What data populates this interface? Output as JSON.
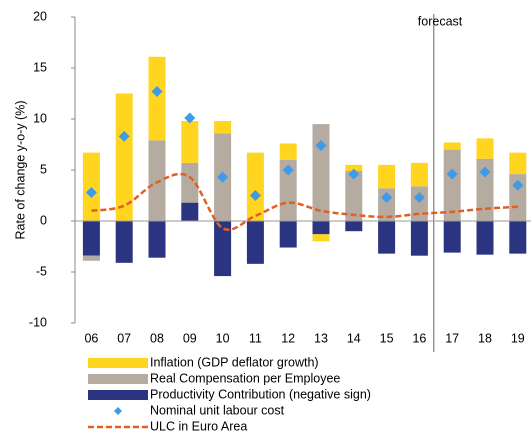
{
  "chart_data": {
    "type": "bar",
    "stacked": true,
    "y_label": "Rate of change y-o-y (%)",
    "annotation": "forecast",
    "categories": [
      "06",
      "07",
      "08",
      "09",
      "10",
      "11",
      "12",
      "13",
      "14",
      "15",
      "16",
      "17",
      "18",
      "19"
    ],
    "ylim": [
      -10,
      20
    ],
    "yticks": [
      -10,
      -5,
      0,
      5,
      10,
      15,
      20
    ],
    "grid": false,
    "series": [
      {
        "name": "Productivity Contribution (negative sign)",
        "type": "bar",
        "color": "#2b3480",
        "values": [
          -3.4,
          -4.1,
          -3.6,
          1.8,
          -5.4,
          -4.2,
          -2.6,
          -1.3,
          -1.0,
          -3.2,
          -3.4,
          -3.1,
          -3.3,
          -3.2
        ]
      },
      {
        "name": "Real Compensation per Employee",
        "type": "bar",
        "color": "#b5aba1",
        "values": [
          -0.5,
          0,
          7.9,
          3.9,
          8.6,
          0,
          6.0,
          9.5,
          4.9,
          3.2,
          3.4,
          7.0,
          6.1,
          4.6
        ]
      },
      {
        "name": "Inflation (GDP deflator growth)",
        "type": "bar",
        "color": "#ffd51f",
        "values": [
          6.7,
          12.5,
          8.2,
          4.1,
          1.2,
          6.7,
          1.6,
          -0.7,
          0.6,
          2.3,
          2.3,
          0.7,
          2.0,
          2.1
        ]
      },
      {
        "name": "Nominal unit labour cost",
        "type": "scatter",
        "color": "#3d9be9",
        "values": [
          2.8,
          8.3,
          12.7,
          10.1,
          4.3,
          2.5,
          5.0,
          7.4,
          4.6,
          2.3,
          2.3,
          4.6,
          4.8,
          3.5
        ]
      },
      {
        "name": "ULC in Euro Area",
        "type": "line",
        "color": "#e2601f",
        "values": [
          1.0,
          1.5,
          3.8,
          4.3,
          -0.7,
          0.5,
          1.8,
          1.0,
          0.6,
          0.4,
          0.7,
          0.9,
          1.2,
          1.4
        ]
      }
    ],
    "legend_order": [
      2,
      1,
      0,
      3,
      4
    ]
  }
}
